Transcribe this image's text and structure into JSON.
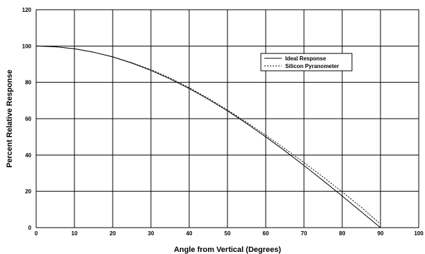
{
  "chart_data": {
    "type": "line",
    "title": "",
    "xlabel": "Angle from Vertical (Degrees)",
    "ylabel": "Percent Relative Response",
    "xlim": [
      0,
      100
    ],
    "ylim": [
      0,
      120
    ],
    "xticks": [
      "0",
      "10",
      "20",
      "30",
      "40",
      "50",
      "60",
      "70",
      "80",
      "90",
      "100"
    ],
    "yticks": [
      "0",
      "20",
      "40",
      "60",
      "80",
      "100",
      "120"
    ],
    "grid": true,
    "legend_position": "top-right",
    "series": [
      {
        "name": "Ideal Response",
        "style": "solid",
        "color": "#000000",
        "x": [
          0,
          5,
          10,
          15,
          20,
          25,
          30,
          35,
          40,
          45,
          50,
          55,
          60,
          65,
          70,
          75,
          80,
          85,
          90
        ],
        "y": [
          100,
          99.6,
          98.5,
          96.6,
          94.0,
          90.6,
          86.6,
          81.9,
          76.6,
          70.7,
          64.3,
          57.4,
          50.0,
          42.3,
          34.2,
          25.9,
          17.4,
          8.7,
          0
        ]
      },
      {
        "name": "Silicon Pyranometer",
        "style": "dotted",
        "color": "#000000",
        "x": [
          0,
          5,
          10,
          15,
          20,
          25,
          30,
          35,
          40,
          45,
          50,
          55,
          60,
          65,
          70,
          75,
          80,
          85,
          90
        ],
        "y": [
          100,
          99.6,
          98.5,
          96.6,
          94.1,
          90.8,
          87.0,
          82.4,
          77.1,
          71.2,
          64.8,
          58.0,
          50.9,
          43.5,
          35.8,
          27.9,
          19.7,
          11.2,
          2.0
        ]
      }
    ]
  }
}
